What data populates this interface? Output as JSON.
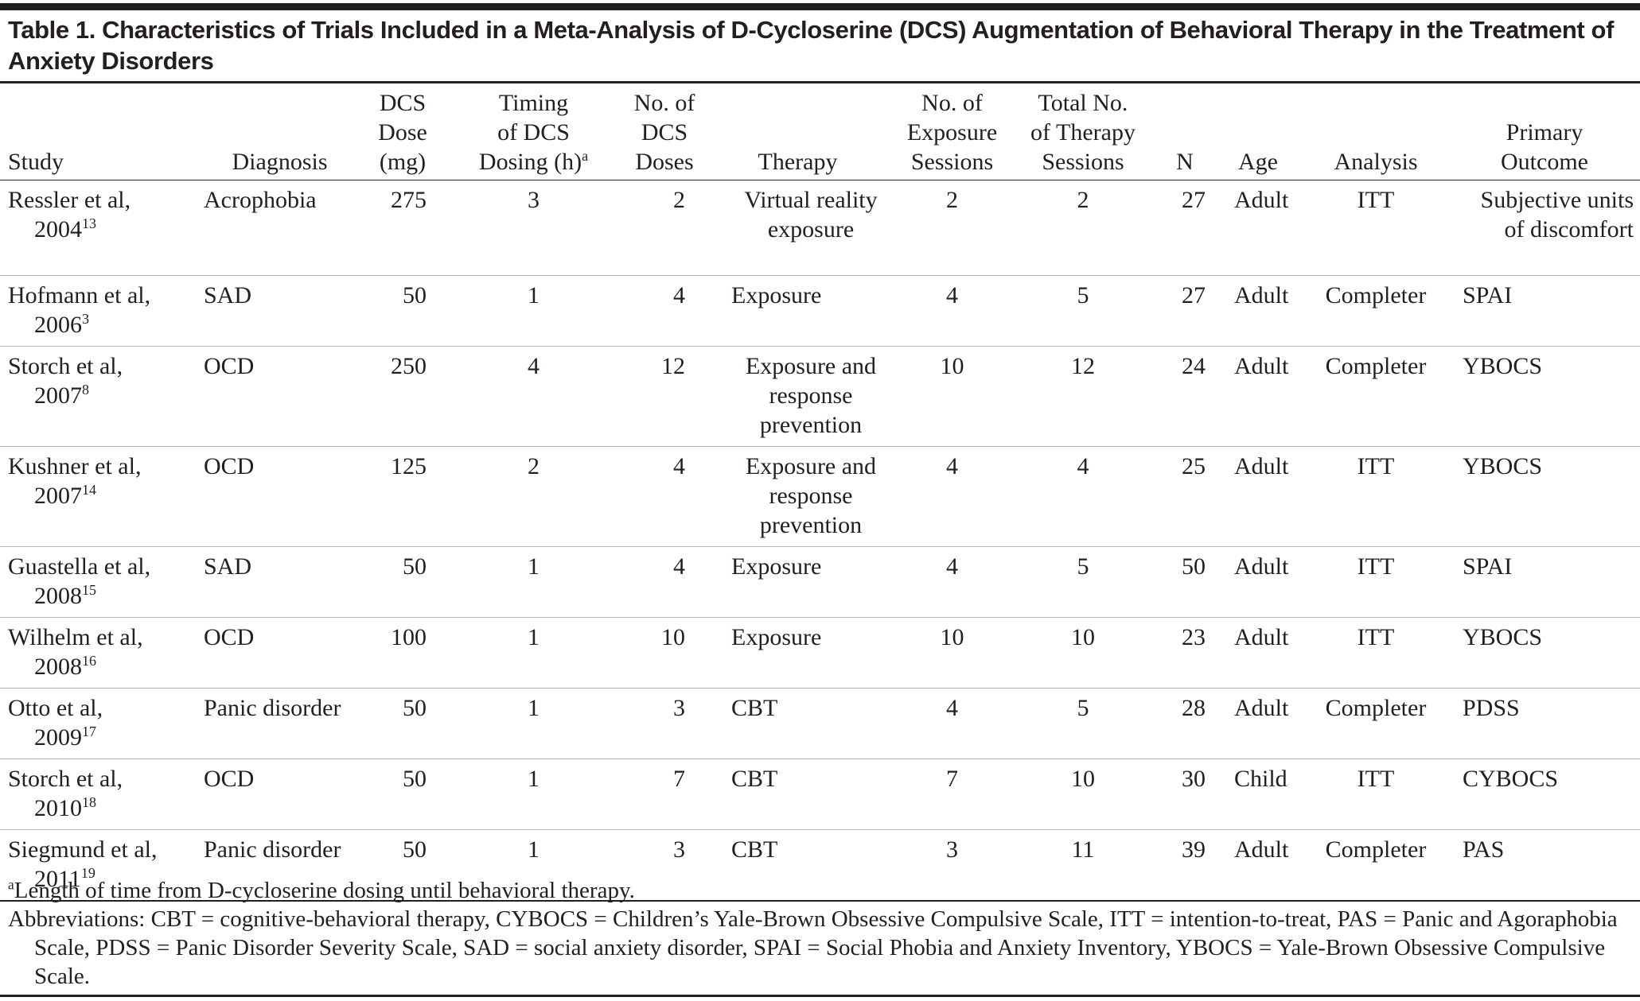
{
  "title": "Table 1. Characteristics of Trials Included in a Meta-Analysis of D-Cycloserine (DCS) Augmentation of Behavioral Therapy in the Treatment of Anxiety Disorders",
  "table": {
    "columns": [
      {
        "key": "study",
        "lines": [
          "Study"
        ]
      },
      {
        "key": "diagnosis",
        "lines": [
          "Diagnosis"
        ]
      },
      {
        "key": "dose",
        "lines": [
          "DCS",
          "Dose",
          "(mg)"
        ]
      },
      {
        "key": "timing",
        "lines": [
          "Timing",
          "of DCS",
          "Dosing (h)"
        ],
        "note": "a"
      },
      {
        "key": "doses",
        "lines": [
          "No. of",
          "DCS",
          "Doses"
        ]
      },
      {
        "key": "therapy",
        "lines": [
          "Therapy"
        ]
      },
      {
        "key": "exposure_sessions",
        "lines": [
          "No. of",
          "Exposure",
          "Sessions"
        ]
      },
      {
        "key": "total_sessions",
        "lines": [
          "Total No.",
          "of Therapy",
          "Sessions"
        ]
      },
      {
        "key": "n",
        "lines": [
          "N"
        ]
      },
      {
        "key": "age",
        "lines": [
          "Age"
        ]
      },
      {
        "key": "analysis",
        "lines": [
          "Analysis"
        ]
      },
      {
        "key": "outcome",
        "lines": [
          "Primary",
          "Outcome"
        ]
      }
    ],
    "rows": [
      {
        "study": "Ressler et al,",
        "year": "2004",
        "ref": "13",
        "diagnosis": "Acrophobia",
        "dose": 275,
        "timing": 3,
        "doses": 2,
        "therapy": "Virtual reality exposure",
        "exposure_sessions": 2,
        "total_sessions": 2,
        "n": 27,
        "age": "Adult",
        "analysis": "ITT",
        "outcome": "Subjective units of discomfort"
      },
      {
        "study": "Hofmann et al,",
        "year": "2006",
        "ref": "3",
        "diagnosis": "SAD",
        "dose": 50,
        "timing": 1,
        "doses": 4,
        "therapy": "Exposure",
        "exposure_sessions": 4,
        "total_sessions": 5,
        "n": 27,
        "age": "Adult",
        "analysis": "Completer",
        "outcome": "SPAI"
      },
      {
        "study": "Storch et al,",
        "year": "2007",
        "ref": "8",
        "diagnosis": "OCD",
        "dose": 250,
        "timing": 4,
        "doses": 12,
        "therapy": "Exposure and response prevention",
        "exposure_sessions": 10,
        "total_sessions": 12,
        "n": 24,
        "age": "Adult",
        "analysis": "Completer",
        "outcome": "YBOCS"
      },
      {
        "study": "Kushner et al,",
        "year": "2007",
        "ref": "14",
        "diagnosis": "OCD",
        "dose": 125,
        "timing": 2,
        "doses": 4,
        "therapy": "Exposure and response prevention",
        "exposure_sessions": 4,
        "total_sessions": 4,
        "n": 25,
        "age": "Adult",
        "analysis": "ITT",
        "outcome": "YBOCS"
      },
      {
        "study": "Guastella et al,",
        "year": "2008",
        "ref": "15",
        "diagnosis": "SAD",
        "dose": 50,
        "timing": 1,
        "doses": 4,
        "therapy": "Exposure",
        "exposure_sessions": 4,
        "total_sessions": 5,
        "n": 50,
        "age": "Adult",
        "analysis": "ITT",
        "outcome": "SPAI"
      },
      {
        "study": "Wilhelm et al,",
        "year": "2008",
        "ref": "16",
        "diagnosis": "OCD",
        "dose": 100,
        "timing": 1,
        "doses": 10,
        "therapy": "Exposure",
        "exposure_sessions": 10,
        "total_sessions": 10,
        "n": 23,
        "age": "Adult",
        "analysis": "ITT",
        "outcome": "YBOCS"
      },
      {
        "study": "Otto et al,",
        "year": "2009",
        "ref": "17",
        "diagnosis": "Panic disorder",
        "dose": 50,
        "timing": 1,
        "doses": 3,
        "therapy": "CBT",
        "exposure_sessions": 4,
        "total_sessions": 5,
        "n": 28,
        "age": "Adult",
        "analysis": "Completer",
        "outcome": "PDSS"
      },
      {
        "study": "Storch et al,",
        "year": "2010",
        "ref": "18",
        "diagnosis": "OCD",
        "dose": 50,
        "timing": 1,
        "doses": 7,
        "therapy": "CBT",
        "exposure_sessions": 7,
        "total_sessions": 10,
        "n": 30,
        "age": "Child",
        "analysis": "ITT",
        "outcome": "CYBOCS"
      },
      {
        "study": "Siegmund et al,",
        "year": "2011",
        "ref": "19",
        "diagnosis": "Panic disorder",
        "dose": 50,
        "timing": 1,
        "doses": 3,
        "therapy": "CBT",
        "exposure_sessions": 3,
        "total_sessions": 11,
        "n": 39,
        "age": "Adult",
        "analysis": "Completer",
        "outcome": "PAS"
      }
    ]
  },
  "footnotes": {
    "marker": "a",
    "note": "Length of time from D-cycloserine dosing until behavioral therapy.",
    "abbreviations": "Abbreviations: CBT = cognitive-behavioral therapy, CYBOCS = Children’s Yale-Brown Obsessive Compulsive Scale, ITT = intention-to-treat, PAS = Panic and Agoraphobia Scale, PDSS = Panic Disorder Severity Scale, SAD = social anxiety disorder, SPAI = Social Phobia and Anxiety Inventory, YBOCS = Yale-Brown Obsessive Compulsive Scale."
  }
}
